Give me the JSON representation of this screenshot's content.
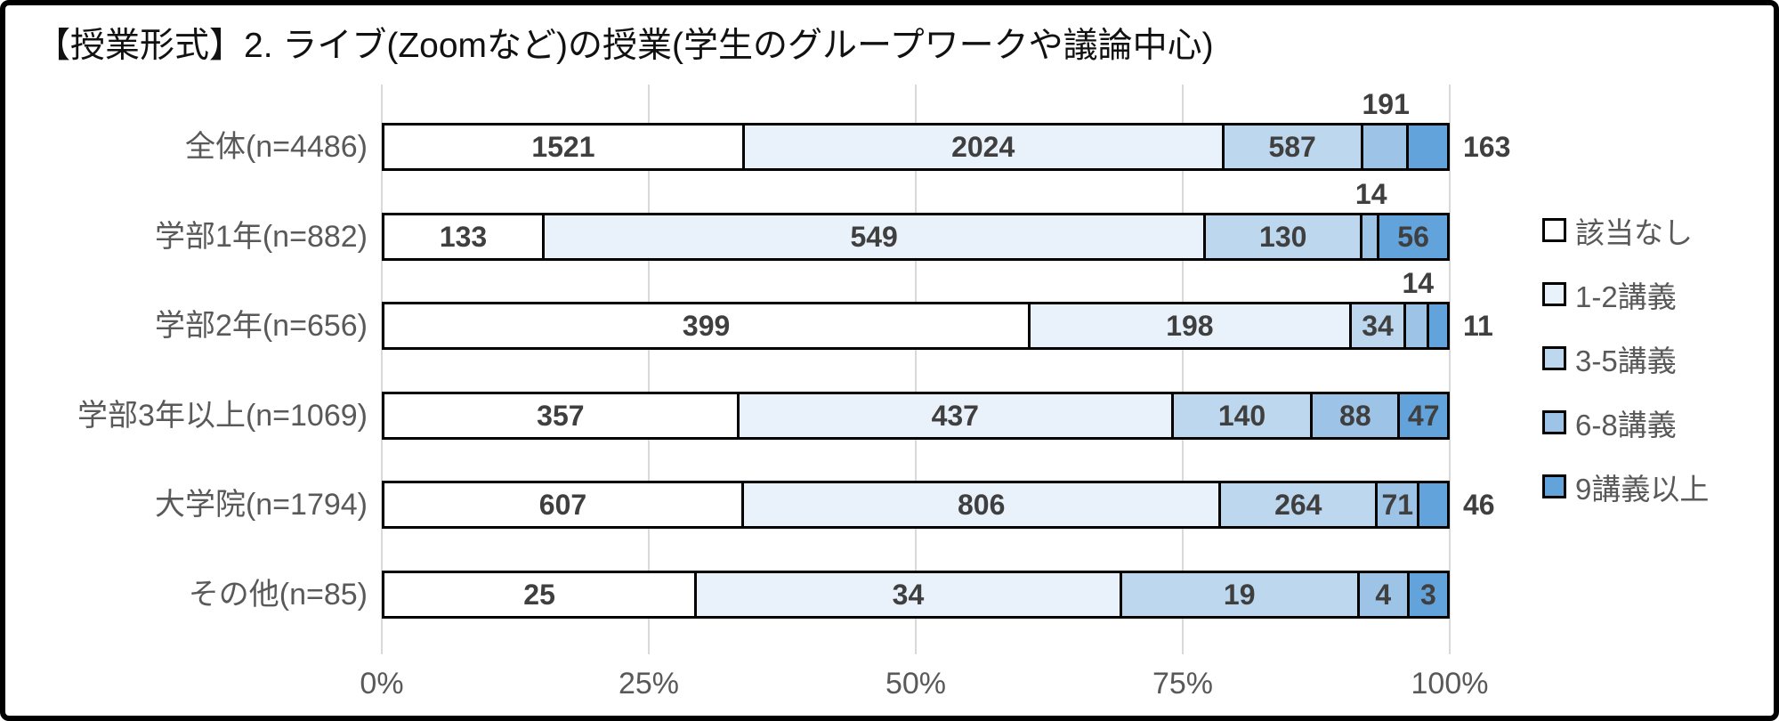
{
  "title": "【授業形式】2. ライブ(Zoomなど)の授業(学生のグループワークや議論中心)",
  "chart_data": {
    "type": "bar",
    "subtype": "stacked-horizontal-100percent",
    "title": "【授業形式】2. ライブ(Zoomなど)の授業(学生のグループワークや議論中心)",
    "categories": [
      "全体(n=4486)",
      "学部1年(n=882)",
      "学部2年(n=656)",
      "学部3年以上(n=1069)",
      "大学院(n=1794)",
      "その他(n=85)"
    ],
    "totals": [
      4486,
      882,
      656,
      1069,
      1794,
      85
    ],
    "series": [
      {
        "name": "該当なし",
        "color": "#FFFFFF",
        "values": [
          1521,
          133,
          399,
          357,
          607,
          25
        ]
      },
      {
        "name": "1-2講義",
        "color": "#E9F1FA",
        "values": [
          2024,
          549,
          198,
          437,
          806,
          34
        ]
      },
      {
        "name": "3-5講義",
        "color": "#BDD7EE",
        "values": [
          587,
          130,
          34,
          140,
          264,
          19
        ]
      },
      {
        "name": "6-8講義",
        "color": "#9DC3E6",
        "values": [
          191,
          14,
          14,
          88,
          71,
          4
        ]
      },
      {
        "name": "9講義以上",
        "color": "#62A3DC",
        "values": [
          163,
          56,
          11,
          47,
          46,
          3
        ]
      }
    ],
    "value_label_positions": [
      [
        "inside",
        "inside",
        "inside",
        "above",
        "right"
      ],
      [
        "inside",
        "inside",
        "inside",
        "above",
        "inside"
      ],
      [
        "inside",
        "inside",
        "inside",
        "above",
        "right"
      ],
      [
        "inside",
        "inside",
        "inside",
        "inside",
        "inside"
      ],
      [
        "inside",
        "inside",
        "inside",
        "inside",
        "right"
      ],
      [
        "inside",
        "inside",
        "inside",
        "inside",
        "inside"
      ]
    ],
    "x_axis": {
      "tick_labels": [
        "0%",
        "25%",
        "50%",
        "75%",
        "100%"
      ],
      "tick_values": [
        0,
        25,
        50,
        75,
        100
      ],
      "range": [
        0,
        100
      ],
      "grid": true
    },
    "legend": {
      "position": "right",
      "items": [
        "該当なし",
        "1-2講義",
        "3-5講義",
        "6-8講義",
        "9講義以上"
      ]
    },
    "colors": {
      "segment_border": "#000000",
      "gridline": "#D9D9D9",
      "label_text": "#595959",
      "value_text": "#3F3F3F",
      "frame_border": "#000000"
    }
  }
}
